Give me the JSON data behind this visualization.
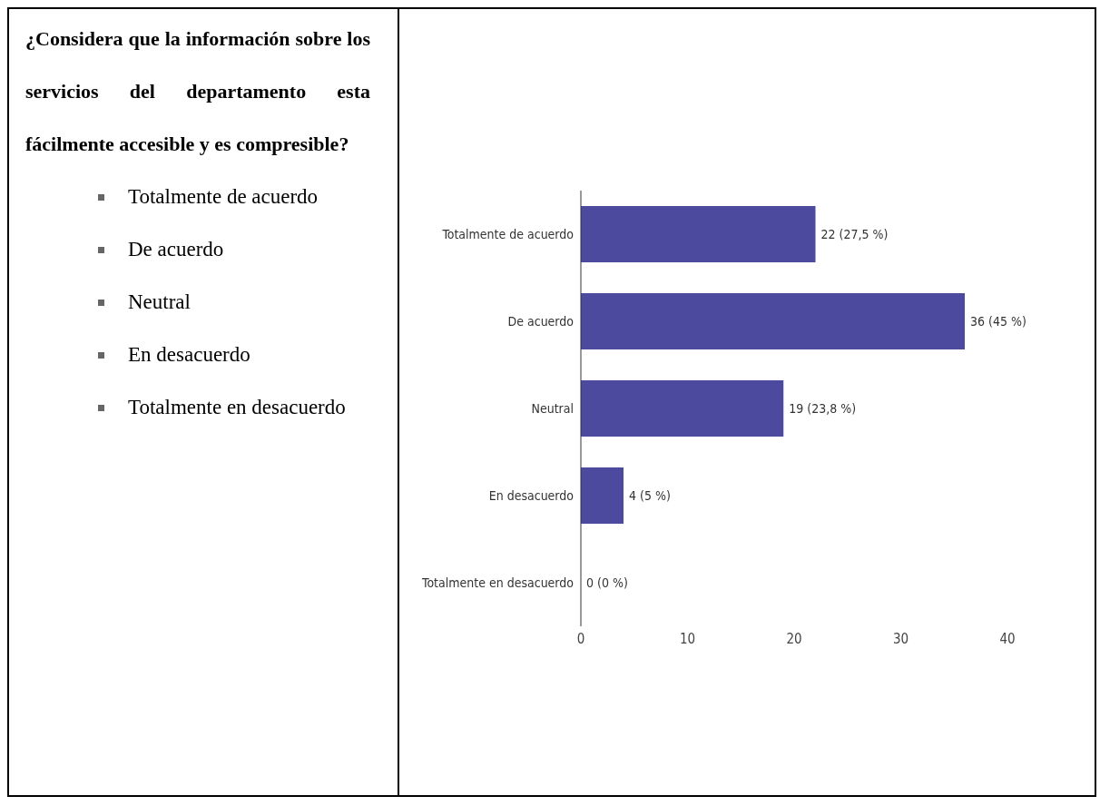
{
  "chart_data": {
    "type": "bar",
    "orientation": "horizontal",
    "title": "¿Considera que la información sobre los servicios del departamento esta fácilmente accesible y es compresible?",
    "categories": [
      "Totalmente de acuerdo",
      "De acuerdo",
      "Neutral",
      "En desacuerdo",
      "Totalmente en desacuerdo"
    ],
    "values": [
      22,
      36,
      19,
      4,
      0
    ],
    "value_labels": [
      "22 (27,5 %)",
      "36 (45 %)",
      "19 (23,8 %)",
      "4 (5 %)",
      "0 (0 %)"
    ],
    "color": "#4b4a9e",
    "xlim": [
      0,
      40
    ],
    "xticks": [
      0,
      10,
      20,
      30,
      40
    ],
    "grid": false,
    "legend": false,
    "annotations": [
      "Totalmente de acuerdo",
      "De acuerdo",
      "Neutral",
      "En desacuerdo",
      "Totalmente en desacuerdo"
    ]
  }
}
